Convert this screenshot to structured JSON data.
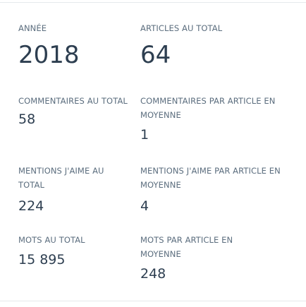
{
  "stats": {
    "year": {
      "label": "ANNÉE",
      "value": "2018"
    },
    "articles_total": {
      "label": "ARTICLES AU TOTAL",
      "value": "64"
    },
    "comments_total": {
      "label": "COMMENTAIRES AU TOTAL",
      "value": "58"
    },
    "comments_per_article": {
      "label": "COMMENTAIRES PAR ARTICLE EN MOYENNE",
      "value": "1"
    },
    "likes_total": {
      "label": "MENTIONS J'AIME AU TOTAL",
      "value": "224"
    },
    "likes_per_article": {
      "label": "MENTIONS J'AIME PAR ARTICLE EN MOYENNE",
      "value": "4"
    },
    "words_total": {
      "label": "MOTS AU TOTAL",
      "value": "15 895"
    },
    "words_per_article": {
      "label": "MOTS PAR ARTICLE EN MOYENNE",
      "value": "248"
    }
  }
}
